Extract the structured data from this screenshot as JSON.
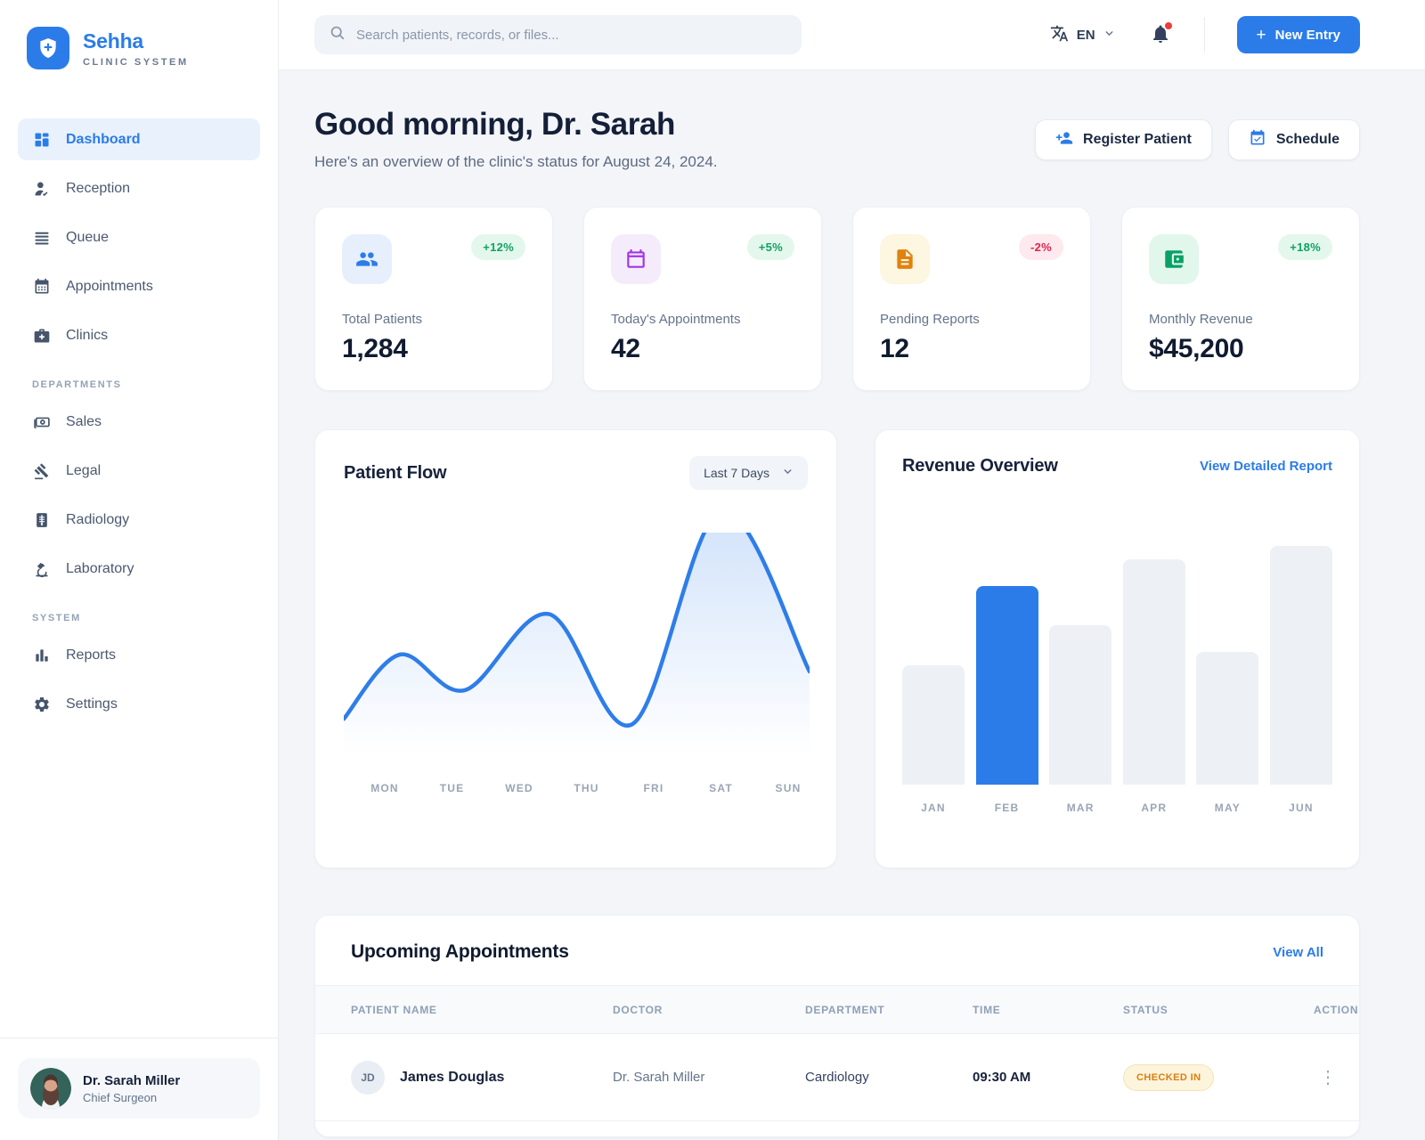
{
  "app": {
    "name": "Sehha",
    "tagline": "CLINIC SYSTEM"
  },
  "topbar": {
    "search_placeholder": "Search patients, records, or files...",
    "language": "EN",
    "has_unread_notification": true,
    "new_entry_label": "New Entry"
  },
  "sidebar": {
    "nav": [
      {
        "label": "Dashboard",
        "icon": "dashboard-icon",
        "active": true
      },
      {
        "label": "Reception",
        "icon": "reception-icon",
        "active": false
      },
      {
        "label": "Queue",
        "icon": "queue-icon",
        "active": false
      },
      {
        "label": "Appointments",
        "icon": "appointments-icon",
        "active": false
      },
      {
        "label": "Clinics",
        "icon": "clinics-icon",
        "active": false
      }
    ],
    "sections": [
      {
        "title": "DEPARTMENTS",
        "items": [
          {
            "label": "Sales",
            "icon": "sales-icon"
          },
          {
            "label": "Legal",
            "icon": "legal-icon"
          },
          {
            "label": "Radiology",
            "icon": "radiology-icon"
          },
          {
            "label": "Laboratory",
            "icon": "laboratory-icon"
          }
        ]
      },
      {
        "title": "SYSTEM",
        "items": [
          {
            "label": "Reports",
            "icon": "reports-icon"
          },
          {
            "label": "Settings",
            "icon": "settings-icon"
          }
        ]
      }
    ],
    "profile": {
      "name": "Dr. Sarah Miller",
      "role": "Chief Surgeon"
    }
  },
  "header": {
    "greeting": "Good morning, Dr. Sarah",
    "subtitle": "Here's an overview of the clinic's status for August 24, 2024.",
    "register_label": "Register Patient",
    "schedule_label": "Schedule"
  },
  "stats": [
    {
      "label": "Total Patients",
      "value": "1,284",
      "delta": "+12%",
      "trend": "up",
      "icon": "patients-icon",
      "tile_bg": "#e7effc",
      "icon_color": "#2b7ce9"
    },
    {
      "label": "Today's Appointments",
      "value": "42",
      "delta": "+5%",
      "trend": "up",
      "icon": "calendar-icon",
      "tile_bg": "#f5ecfb",
      "icon_color": "#a234e8"
    },
    {
      "label": "Pending Reports",
      "value": "12",
      "delta": "-2%",
      "trend": "down",
      "icon": "document-icon",
      "tile_bg": "#fdf6e0",
      "icon_color": "#e0820f"
    },
    {
      "label": "Monthly Revenue",
      "value": "$45,200",
      "delta": "+18%",
      "trend": "up",
      "icon": "wallet-icon",
      "tile_bg": "#e2f7ec",
      "icon_color": "#0aa066"
    }
  ],
  "patient_flow": {
    "title": "Patient Flow",
    "range_label": "Last 7 Days"
  },
  "revenue": {
    "title": "Revenue Overview",
    "link_label": "View Detailed Report"
  },
  "appointments": {
    "title": "Upcoming Appointments",
    "link_label": "View All",
    "columns": [
      "PATIENT NAME",
      "DOCTOR",
      "DEPARTMENT",
      "TIME",
      "STATUS",
      "ACTION"
    ],
    "rows": [
      {
        "initials": "JD",
        "name": "James Douglas",
        "doctor": "Dr. Sarah Miller",
        "department": "Cardiology",
        "time": "09:30 AM",
        "status": "CHECKED IN"
      }
    ]
  },
  "colors": {
    "primary": "#2b7ce9",
    "positive": "#0fa361",
    "negative": "#e0244c",
    "status_checked_in": "#dd7e0e",
    "bar_muted": "#edf1f6"
  },
  "icons": {
    "logo": "shield-plus",
    "search": "magnifier",
    "language": "translate-A",
    "notifications": "bell-with-red-dot",
    "new_entry": "plus",
    "register": "person-plus",
    "schedule": "calendar-check",
    "row_actions": "kebab-vertical"
  },
  "chart_data": [
    {
      "id": "patient-flow",
      "type": "area",
      "title": "Patient Flow",
      "categories": [
        "MON",
        "TUE",
        "WED",
        "THU",
        "FRI",
        "SAT",
        "SUN"
      ],
      "curve_points": [
        [
          0,
          12
        ],
        [
          0.12,
          50
        ],
        [
          0.26,
          29
        ],
        [
          0.44,
          74
        ],
        [
          0.62,
          9
        ],
        [
          0.81,
          135
        ],
        [
          1,
          40
        ]
      ],
      "note": "decorative smooth spline; pairs are [fraction of plot width, value % of y-range]; SAT peak exceeds range and is clipped flat at the top",
      "line_color": "#2e7de9",
      "fill": "vertical gradient of line color fading to transparent",
      "ylim": [
        0,
        100
      ],
      "grid": false,
      "legend": false
    },
    {
      "id": "revenue-overview",
      "type": "bar",
      "title": "Revenue Overview",
      "categories": [
        "JAN",
        "FEB",
        "MAR",
        "APR",
        "MAY",
        "JUN"
      ],
      "values_pct": [
        45,
        75,
        60,
        85,
        50,
        90
      ],
      "highlight_index": 1,
      "highlight_color": "#2b7ce9",
      "bar_color": "#edf1f6",
      "ylim": [
        0,
        100
      ],
      "grid": false,
      "legend": false
    }
  ]
}
